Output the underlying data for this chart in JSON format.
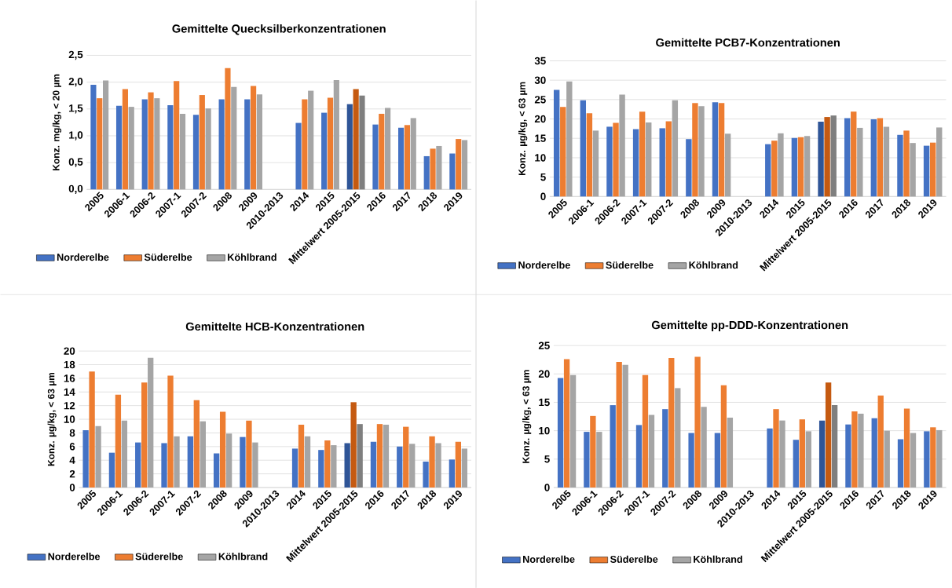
{
  "chart_data": [
    {
      "type": "bar",
      "title": "Gemittelte Quecksilberkonzentrationen",
      "ylabel": "Konz. mg/kg, < 20 µm",
      "categories": [
        "2005",
        "2006-1",
        "2006-2",
        "2007-1",
        "2007-2",
        "2008",
        "2009",
        "2010-2013",
        "2014",
        "2015",
        "Mittelwert 2005-2015",
        "2016",
        "2017",
        "2018",
        "2019"
      ],
      "series": [
        {
          "name": "Norderelbe",
          "color": "#4472c4",
          "colors": [
            "#4472c4",
            "#4472c4",
            "#4472c4",
            "#4472c4",
            "#4472c4",
            "#4472c4",
            "#4472c4",
            "#4472c4",
            "#4472c4",
            "#4472c4",
            "#2f5597",
            "#4472c4",
            "#4472c4",
            "#4472c4",
            "#4472c4"
          ],
          "values": [
            1.95,
            1.56,
            1.68,
            1.57,
            1.39,
            1.68,
            1.68,
            null,
            1.24,
            1.43,
            1.59,
            1.21,
            1.15,
            0.62,
            0.67
          ]
        },
        {
          "name": "Süderelbe",
          "color": "#ed7d31",
          "colors": [
            "#ed7d31",
            "#ed7d31",
            "#ed7d31",
            "#ed7d31",
            "#ed7d31",
            "#ed7d31",
            "#ed7d31",
            "#ed7d31",
            "#ed7d31",
            "#ed7d31",
            "#c55a11",
            "#ed7d31",
            "#ed7d31",
            "#ed7d31",
            "#ed7d31"
          ],
          "values": [
            1.7,
            1.87,
            1.81,
            2.02,
            1.76,
            2.26,
            1.93,
            null,
            1.68,
            1.71,
            1.87,
            1.41,
            1.2,
            0.76,
            0.94
          ]
        },
        {
          "name": "Köhlbrand",
          "color": "#a5a5a5",
          "colors": [
            "#a5a5a5",
            "#a5a5a5",
            "#a5a5a5",
            "#a5a5a5",
            "#a5a5a5",
            "#a5a5a5",
            "#a5a5a5",
            "#a5a5a5",
            "#a5a5a5",
            "#a5a5a5",
            "#7f7f7f",
            "#a5a5a5",
            "#a5a5a5",
            "#a5a5a5",
            "#a5a5a5"
          ],
          "values": [
            2.03,
            1.54,
            1.7,
            1.41,
            1.51,
            1.91,
            1.77,
            null,
            1.84,
            2.04,
            1.75,
            1.52,
            1.33,
            0.81,
            0.92
          ]
        }
      ],
      "ylim": [
        0,
        2.5
      ],
      "yticks": [
        {
          "value": 0,
          "label": "0,0"
        },
        {
          "value": 0.5,
          "label": "0,5"
        },
        {
          "value": 1,
          "label": "1,0"
        },
        {
          "value": 1.5,
          "label": "1,5"
        },
        {
          "value": 2,
          "label": "2,0"
        },
        {
          "value": 2.5,
          "label": "2,5"
        }
      ],
      "grid": "y",
      "legend": "bottom"
    },
    {
      "type": "bar",
      "title": "Gemittelte PCB7-Konzentrationen",
      "ylabel": "Konz. µg/kg, < 63 µm",
      "categories": [
        "2005",
        "2006-1",
        "2006-2",
        "2007-1",
        "2007-2",
        "2008",
        "2009",
        "2010-2013",
        "2014",
        "2015",
        "Mittelwert 2005-2015",
        "2016",
        "2017",
        "2018",
        "2019"
      ],
      "series": [
        {
          "name": "Norderelbe",
          "color": "#4472c4",
          "colors": [
            "#4472c4",
            "#4472c4",
            "#4472c4",
            "#4472c4",
            "#4472c4",
            "#4472c4",
            "#4472c4",
            "#4472c4",
            "#4472c4",
            "#4472c4",
            "#2f5597",
            "#4472c4",
            "#4472c4",
            "#4472c4",
            "#4472c4"
          ],
          "values": [
            27.5,
            24.8,
            18.0,
            17.4,
            17.6,
            14.8,
            24.3,
            null,
            13.5,
            15.1,
            19.3,
            20.2,
            19.9,
            15.9,
            13.1
          ]
        },
        {
          "name": "Süderelbe",
          "color": "#ed7d31",
          "colors": [
            "#ed7d31",
            "#ed7d31",
            "#ed7d31",
            "#ed7d31",
            "#ed7d31",
            "#ed7d31",
            "#ed7d31",
            "#ed7d31",
            "#ed7d31",
            "#ed7d31",
            "#c55a11",
            "#ed7d31",
            "#ed7d31",
            "#ed7d31",
            "#ed7d31"
          ],
          "values": [
            23.1,
            21.5,
            19.0,
            21.9,
            19.4,
            24.1,
            24.1,
            null,
            14.4,
            15.3,
            20.5,
            21.9,
            20.2,
            17.0,
            13.9
          ]
        },
        {
          "name": "Köhlbrand",
          "color": "#a5a5a5",
          "colors": [
            "#a5a5a5",
            "#a5a5a5",
            "#a5a5a5",
            "#a5a5a5",
            "#a5a5a5",
            "#a5a5a5",
            "#a5a5a5",
            "#a5a5a5",
            "#a5a5a5",
            "#a5a5a5",
            "#7f7f7f",
            "#a5a5a5",
            "#a5a5a5",
            "#a5a5a5",
            "#a5a5a5"
          ],
          "values": [
            29.7,
            17.0,
            26.3,
            19.1,
            24.8,
            23.3,
            16.2,
            null,
            16.3,
            15.6,
            20.9,
            17.7,
            18.0,
            13.8,
            17.8
          ]
        }
      ],
      "ylim": [
        0,
        35
      ],
      "yticks": [
        0,
        5,
        10,
        15,
        20,
        25,
        30,
        35
      ],
      "grid": "y",
      "legend": "bottom"
    },
    {
      "type": "bar",
      "title": "Gemittelte HCB-Konzentrationen",
      "ylabel": "Konz. µg/kg, < 63 µm",
      "categories": [
        "2005",
        "2006-1",
        "2006-2",
        "2007-1",
        "2007-2",
        "2008",
        "2009",
        "2010-2013",
        "2014",
        "2015",
        "Mittelwert 2005-2015",
        "2016",
        "2017",
        "2018",
        "2019"
      ],
      "series": [
        {
          "name": "Norderelbe",
          "color": "#4472c4",
          "colors": [
            "#4472c4",
            "#4472c4",
            "#4472c4",
            "#4472c4",
            "#4472c4",
            "#4472c4",
            "#4472c4",
            "#4472c4",
            "#4472c4",
            "#4472c4",
            "#2f5597",
            "#4472c4",
            "#4472c4",
            "#4472c4",
            "#4472c4"
          ],
          "values": [
            8.4,
            5.1,
            6.6,
            6.5,
            7.5,
            5.0,
            7.4,
            null,
            5.7,
            5.5,
            6.5,
            6.7,
            6.0,
            3.8,
            4.1
          ]
        },
        {
          "name": "Süderelbe",
          "color": "#ed7d31",
          "colors": [
            "#ed7d31",
            "#ed7d31",
            "#ed7d31",
            "#ed7d31",
            "#ed7d31",
            "#ed7d31",
            "#ed7d31",
            "#ed7d31",
            "#ed7d31",
            "#ed7d31",
            "#c55a11",
            "#ed7d31",
            "#ed7d31",
            "#ed7d31",
            "#ed7d31"
          ],
          "values": [
            17.0,
            13.6,
            15.4,
            16.4,
            12.8,
            11.1,
            9.8,
            null,
            9.2,
            6.9,
            12.5,
            9.3,
            8.9,
            7.5,
            6.7
          ]
        },
        {
          "name": "Köhlbrand",
          "color": "#a5a5a5",
          "colors": [
            "#a5a5a5",
            "#a5a5a5",
            "#a5a5a5",
            "#a5a5a5",
            "#a5a5a5",
            "#a5a5a5",
            "#a5a5a5",
            "#a5a5a5",
            "#a5a5a5",
            "#a5a5a5",
            "#7f7f7f",
            "#a5a5a5",
            "#a5a5a5",
            "#a5a5a5",
            "#a5a5a5"
          ],
          "values": [
            9.0,
            9.8,
            19.0,
            7.5,
            9.7,
            7.9,
            6.6,
            null,
            7.5,
            6.2,
            9.3,
            9.2,
            6.4,
            6.5,
            5.7
          ]
        }
      ],
      "ylim": [
        0,
        20
      ],
      "yticks": [
        0,
        2,
        4,
        6,
        8,
        10,
        12,
        14,
        16,
        18,
        20
      ],
      "grid": "y",
      "legend": "bottom"
    },
    {
      "type": "bar",
      "title": "Gemittelte pp-DDD-Konzentrationen",
      "ylabel": "Konz. µg/kg, < 63 µm",
      "categories": [
        "2005",
        "2006-1",
        "2006-2",
        "2007-1",
        "2007-2",
        "2008",
        "2009",
        "2010-2013",
        "2014",
        "2015",
        "Mittelwert 2005-2015",
        "2016",
        "2017",
        "2018",
        "2019"
      ],
      "series": [
        {
          "name": "Norderelbe",
          "color": "#4472c4",
          "colors": [
            "#4472c4",
            "#4472c4",
            "#4472c4",
            "#4472c4",
            "#4472c4",
            "#4472c4",
            "#4472c4",
            "#4472c4",
            "#4472c4",
            "#4472c4",
            "#2f5597",
            "#4472c4",
            "#4472c4",
            "#4472c4",
            "#4472c4"
          ],
          "values": [
            19.3,
            9.8,
            14.5,
            11.0,
            13.8,
            9.6,
            9.6,
            null,
            10.4,
            8.4,
            11.8,
            11.1,
            12.2,
            8.5,
            9.9
          ]
        },
        {
          "name": "Süderelbe",
          "color": "#ed7d31",
          "colors": [
            "#ed7d31",
            "#ed7d31",
            "#ed7d31",
            "#ed7d31",
            "#ed7d31",
            "#ed7d31",
            "#ed7d31",
            "#ed7d31",
            "#ed7d31",
            "#ed7d31",
            "#c55a11",
            "#ed7d31",
            "#ed7d31",
            "#ed7d31",
            "#ed7d31"
          ],
          "values": [
            22.6,
            12.6,
            22.1,
            19.8,
            22.8,
            23.0,
            18.0,
            null,
            13.8,
            12.0,
            18.5,
            13.4,
            16.2,
            13.9,
            10.6
          ]
        },
        {
          "name": "Köhlbrand",
          "color": "#a5a5a5",
          "colors": [
            "#a5a5a5",
            "#a5a5a5",
            "#a5a5a5",
            "#a5a5a5",
            "#a5a5a5",
            "#a5a5a5",
            "#a5a5a5",
            "#a5a5a5",
            "#a5a5a5",
            "#a5a5a5",
            "#7f7f7f",
            "#a5a5a5",
            "#a5a5a5",
            "#a5a5a5",
            "#a5a5a5"
          ],
          "values": [
            19.8,
            9.8,
            21.6,
            12.8,
            17.5,
            14.2,
            12.3,
            null,
            11.8,
            9.9,
            14.5,
            13.0,
            10.0,
            9.6,
            10.1
          ]
        }
      ],
      "ylim": [
        0,
        25
      ],
      "yticks": [
        0,
        5,
        10,
        15,
        20,
        25
      ],
      "grid": "y",
      "legend": "bottom"
    }
  ]
}
